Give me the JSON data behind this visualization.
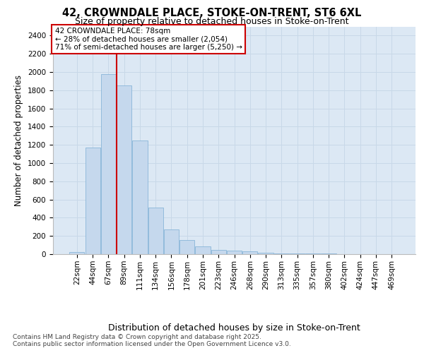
{
  "title_line1": "42, CROWNDALE PLACE, STOKE-ON-TRENT, ST6 6XL",
  "title_line2": "Size of property relative to detached houses in Stoke-on-Trent",
  "xlabel": "Distribution of detached houses by size in Stoke-on-Trent",
  "ylabel": "Number of detached properties",
  "bar_color": "#c5d8ed",
  "bar_edge_color": "#7aaed4",
  "grid_color": "#c8d8e8",
  "background_color": "#dce8f4",
  "categories": [
    "22sqm",
    "44sqm",
    "67sqm",
    "89sqm",
    "111sqm",
    "134sqm",
    "156sqm",
    "178sqm",
    "201sqm",
    "223sqm",
    "246sqm",
    "268sqm",
    "290sqm",
    "313sqm",
    "335sqm",
    "357sqm",
    "380sqm",
    "402sqm",
    "424sqm",
    "447sqm",
    "469sqm"
  ],
  "values": [
    25,
    1170,
    1980,
    1850,
    1245,
    515,
    270,
    155,
    85,
    45,
    40,
    30,
    15,
    10,
    8,
    5,
    5,
    3,
    2,
    2,
    1
  ],
  "ylim": [
    0,
    2500
  ],
  "yticks": [
    0,
    200,
    400,
    600,
    800,
    1000,
    1200,
    1400,
    1600,
    1800,
    2000,
    2200,
    2400
  ],
  "red_line_index": 2,
  "annotation_title": "42 CROWNDALE PLACE: 78sqm",
  "annotation_line2": "← 28% of detached houses are smaller (2,054)",
  "annotation_line3": "71% of semi-detached houses are larger (5,250) →",
  "annotation_box_color": "#ffffff",
  "annotation_box_edge": "#cc0000",
  "footnote_line1": "Contains HM Land Registry data © Crown copyright and database right 2025.",
  "footnote_line2": "Contains public sector information licensed under the Open Government Licence v3.0.",
  "title_fontsize": 10.5,
  "subtitle_fontsize": 9,
  "tick_fontsize": 7.5,
  "ylabel_fontsize": 8.5,
  "xlabel_fontsize": 9,
  "annotation_fontsize": 7.5,
  "footnote_fontsize": 6.5
}
